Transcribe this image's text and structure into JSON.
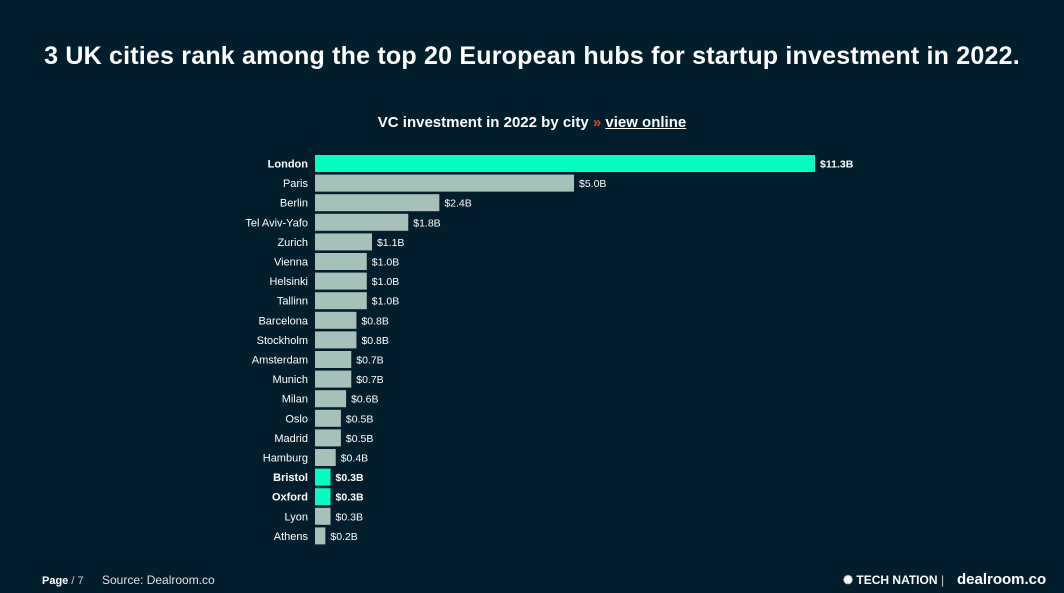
{
  "headline": "3 UK cities rank among the top 20 European hubs for startup investment in 2022.",
  "subtitle": {
    "text": "VC investment in 2022 by city",
    "arrow": "»",
    "link": "view online"
  },
  "footer": {
    "page_label": "Page",
    "page_num": "/ 7",
    "source": "Source: Dealroom.co",
    "logo_tech_nation": "TECH NATION",
    "separator": "|",
    "logo_dealroom": "dealroom.co"
  },
  "colors": {
    "background": "#021e2d",
    "highlight": "#00ffc3",
    "bar": "#a7c0ba"
  },
  "chart_data": {
    "type": "bar",
    "orientation": "horizontal",
    "title": "VC investment in 2022 by city",
    "categories": [
      "London",
      "Paris",
      "Berlin",
      "Tel Aviv-Yafo",
      "Zurich",
      "Vienna",
      "Helsinki",
      "Tallinn",
      "Barcelona",
      "Stockholm",
      "Amsterdam",
      "Munich",
      "Milan",
      "Oslo",
      "Madrid",
      "Hamburg",
      "Bristol",
      "Oxford",
      "Lyon",
      "Athens"
    ],
    "values": [
      11.3,
      5.0,
      2.4,
      1.8,
      1.1,
      1.0,
      1.0,
      1.0,
      0.8,
      0.8,
      0.7,
      0.7,
      0.6,
      0.5,
      0.5,
      0.4,
      0.3,
      0.3,
      0.3,
      0.2
    ],
    "labels": [
      "$11.3B",
      "$5.0B",
      "$2.4B",
      "$1.8B",
      "$1.1B",
      "$1.0B",
      "$1.0B",
      "$1.0B",
      "$0.8B",
      "$0.8B",
      "$0.7B",
      "$0.7B",
      "$0.6B",
      "$0.5B",
      "$0.5B",
      "$0.4B",
      "$0.3B",
      "$0.3B",
      "$0.3B",
      "$0.2B"
    ],
    "highlighted": [
      "London",
      "Bristol",
      "Oxford"
    ],
    "unit": "$B"
  }
}
